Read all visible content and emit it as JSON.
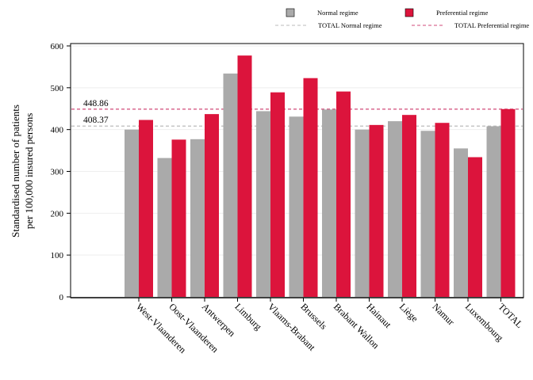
{
  "chart_data": {
    "type": "bar",
    "title": "",
    "xlabel": "",
    "ylabel": [
      "Standardised number of patients",
      "per 100,000 insured persons"
    ],
    "ylim": [
      0,
      600
    ],
    "yticks": [
      0,
      100,
      200,
      300,
      400,
      500,
      600
    ],
    "grid": true,
    "legend_position": "top-right",
    "categories": [
      "West-Vlaanderen",
      "Oost-Vlaanderen",
      "Antwerpen",
      "Limburg",
      "Vlaams-Brabant",
      "Brussels",
      "Brabant Wallon",
      "Hainaut",
      "Liège",
      "Namur",
      "Luxembourg",
      "TOTAL"
    ],
    "series": [
      {
        "name": "Normal regime",
        "color": "#aaaaaa",
        "values": [
          400,
          332,
          377,
          534,
          444,
          431,
          448,
          400,
          420,
          397,
          355,
          408
        ]
      },
      {
        "name": "Preferential regime",
        "color": "#dc143c",
        "values": [
          423,
          376,
          437,
          577,
          489,
          523,
          491,
          411,
          435,
          416,
          334,
          449
        ]
      }
    ],
    "reference_lines": [
      {
        "name": "TOTAL Normal regime",
        "value": 408.37,
        "label": "408.37",
        "color": "#bbbbbb"
      },
      {
        "name": "TOTAL Preferential regime",
        "value": 448.86,
        "label": "448.86",
        "color": "#d04a78"
      }
    ]
  }
}
